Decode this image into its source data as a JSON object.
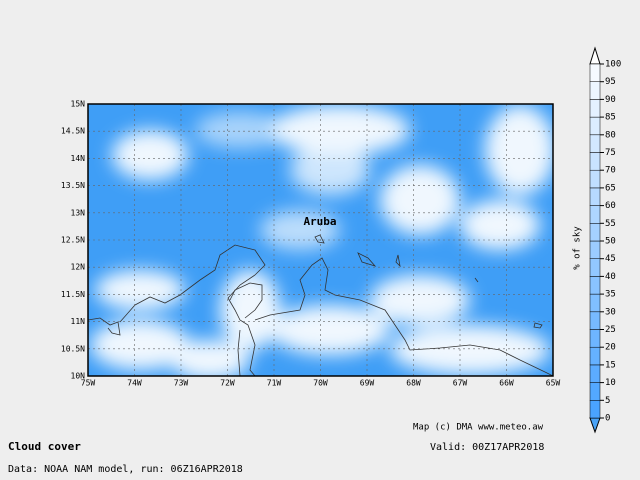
{
  "title": "Cloud cover",
  "source": "Data: NOAA NAM model, run: 06Z16APR2018",
  "valid": "Valid: 00Z17APR2018",
  "credit": "Map (c) DMA www.meteo.aw",
  "place_label": "Aruba",
  "lat_labels": [
    "15N",
    "14.5N",
    "14N",
    "13.5N",
    "13N",
    "12.5N",
    "12N",
    "11.5N",
    "11N",
    "10.5N",
    "10N"
  ],
  "lon_labels": [
    "75W",
    "74W",
    "73W",
    "72W",
    "71W",
    "70W",
    "69W",
    "68W",
    "67W",
    "66W",
    "65W"
  ],
  "colorbar": {
    "label": "% of sky",
    "ticks": [
      0,
      5,
      10,
      15,
      20,
      25,
      30,
      35,
      40,
      45,
      50,
      55,
      60,
      65,
      70,
      75,
      80,
      85,
      90,
      95,
      100
    ]
  }
}
